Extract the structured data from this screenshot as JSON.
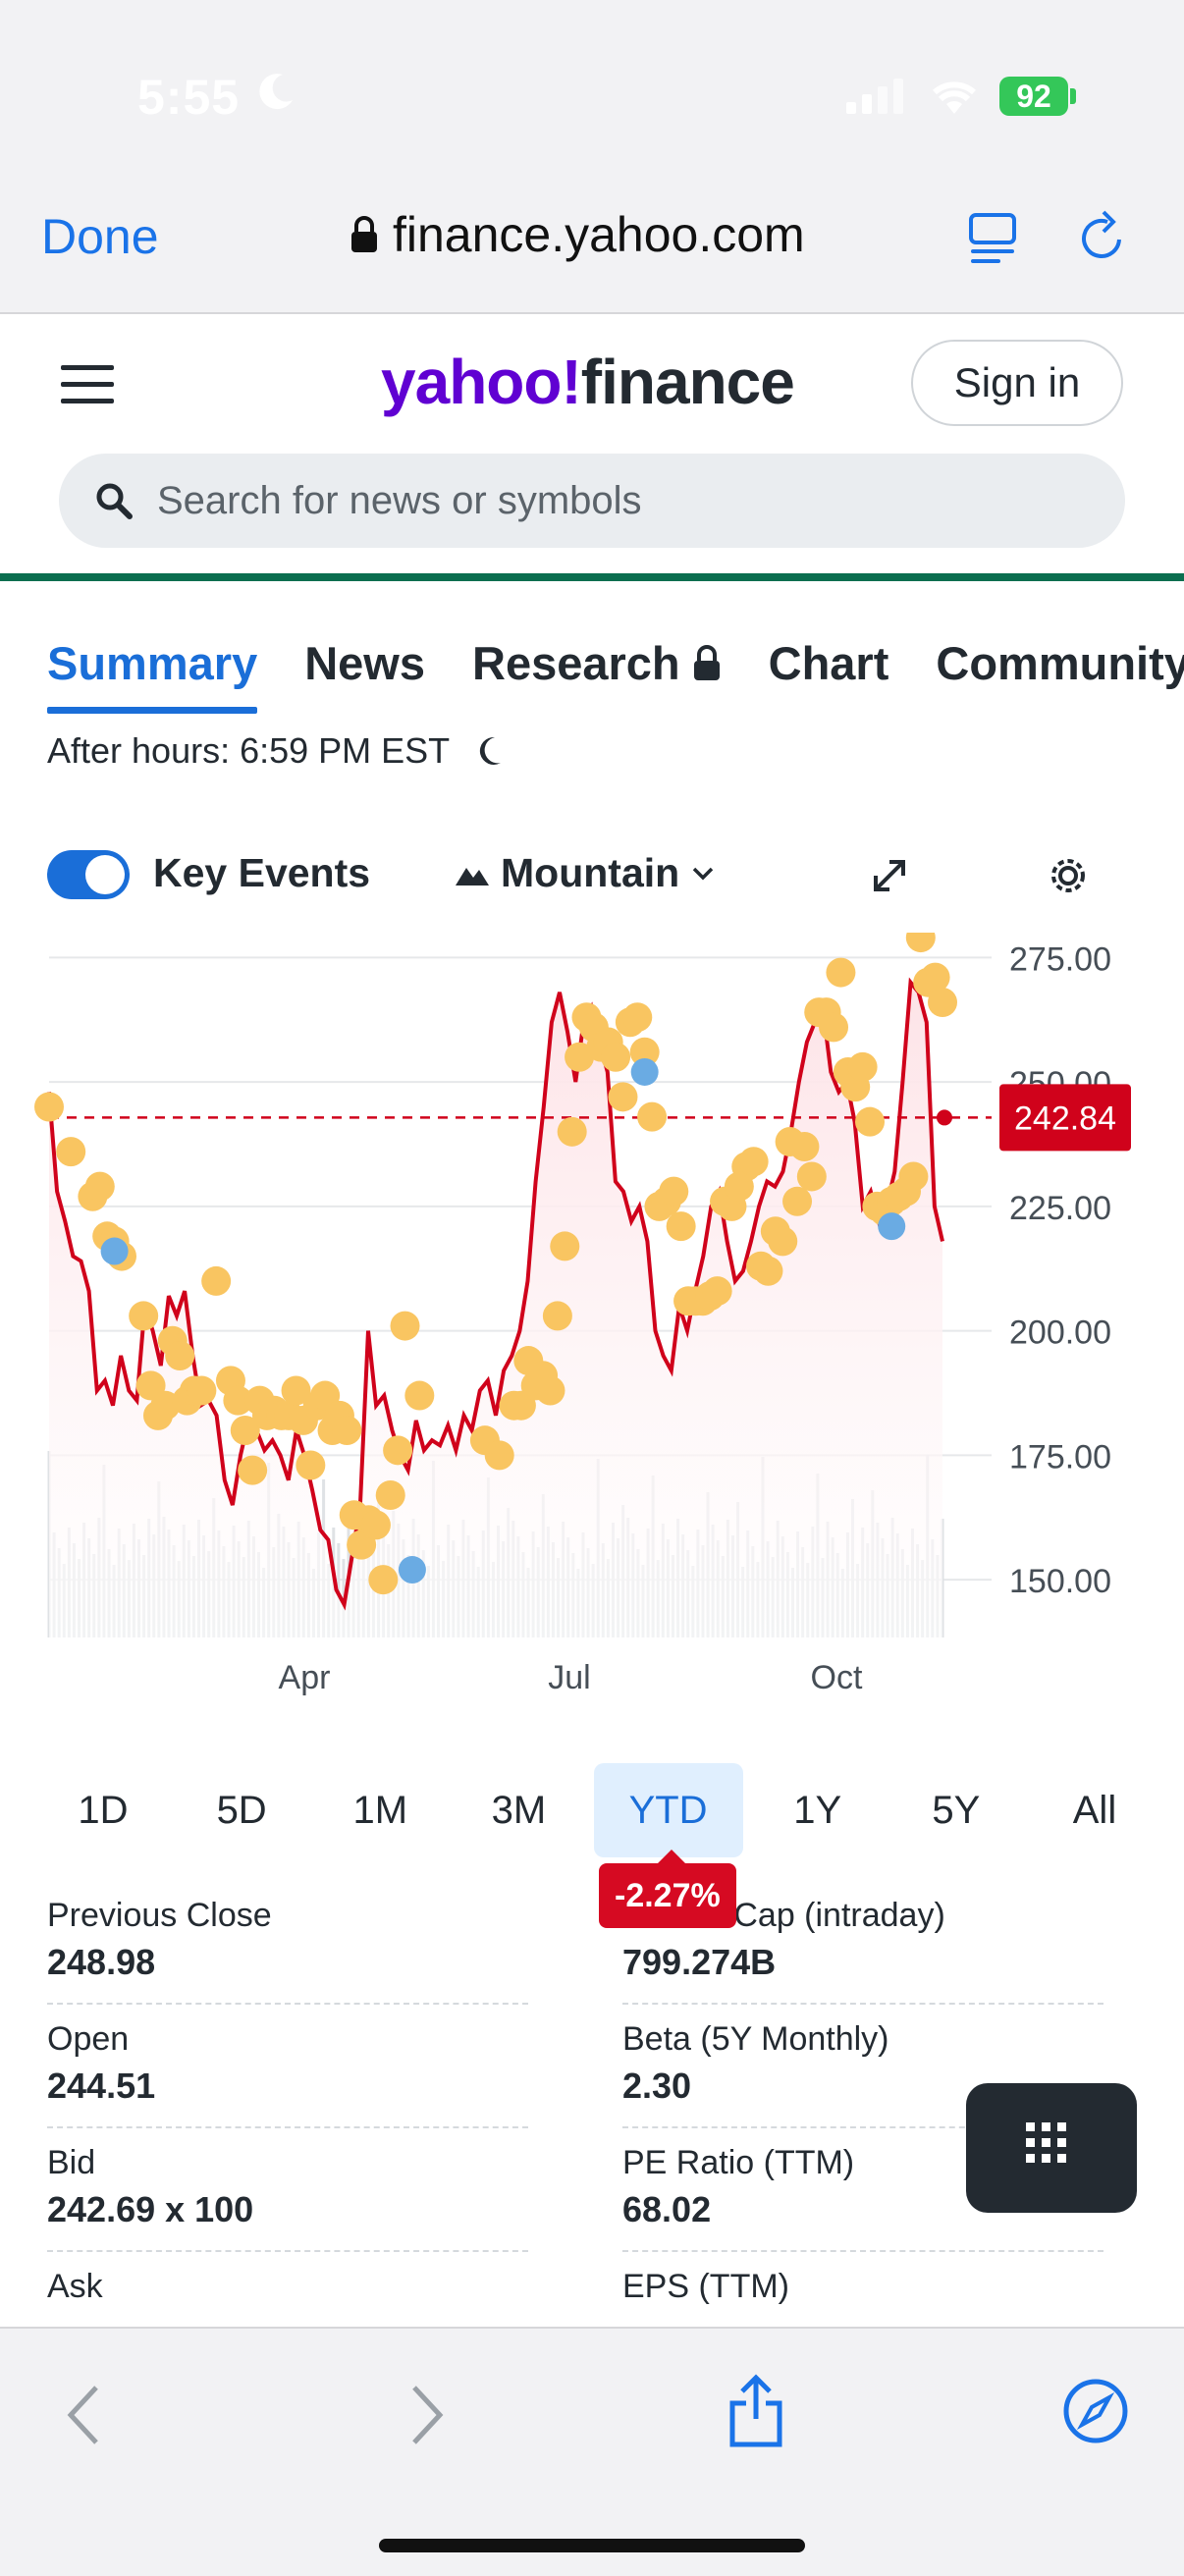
{
  "status_bar": {
    "time": "5:55",
    "battery": "92"
  },
  "browser": {
    "done_label": "Done",
    "url": "finance.yahoo.com"
  },
  "header": {
    "logo_y": "yahoo!",
    "logo_f": "finance",
    "signin_label": "Sign in",
    "search_placeholder": "Search for news or symbols"
  },
  "tabs": [
    {
      "label": "Summary",
      "active": true
    },
    {
      "label": "News"
    },
    {
      "label": "Research"
    },
    {
      "label": "Chart"
    },
    {
      "label": "Community"
    }
  ],
  "after_hours": "After hours: 6:59 PM EST",
  "chart_controls": {
    "key_events_label": "Key Events",
    "key_events_on": true,
    "chart_type": "Mountain"
  },
  "chart_data": {
    "type": "area",
    "x_ticks": [
      "Apr",
      "Jul",
      "Oct"
    ],
    "y_ticks": [
      275.0,
      250.0,
      225.0,
      200.0,
      175.0,
      150.0
    ],
    "ylim": [
      138,
      280
    ],
    "reference_value": 242.84,
    "reference_label": "242.84",
    "line_color": "#d0021b",
    "fill_color": "#fde3e7",
    "event_color": "#f9c561",
    "event_alt_color": "#6aabe3",
    "series": [
      {
        "values": [
          248,
          228,
          222,
          215,
          214,
          208,
          188,
          190,
          185,
          195,
          188,
          186,
          205,
          200,
          193,
          207,
          203,
          208,
          195,
          185,
          186,
          183,
          170,
          165,
          175,
          182,
          180,
          176,
          178,
          175,
          170,
          180,
          175,
          168,
          160,
          158,
          148,
          145,
          155,
          165,
          200,
          185,
          187,
          180,
          175,
          172,
          182,
          176,
          178,
          177,
          181,
          176,
          183,
          180,
          188,
          190,
          183,
          192,
          195,
          200,
          210,
          230,
          245,
          262,
          268,
          260,
          250,
          262,
          265,
          258,
          252,
          230,
          228,
          222,
          225,
          218,
          200,
          195,
          192,
          205,
          200,
          208,
          215,
          225,
          228,
          218,
          210,
          212,
          218,
          225,
          230,
          229,
          232,
          240,
          250,
          258,
          262,
          265,
          252,
          248,
          250,
          242,
          225,
          228,
          222,
          225,
          232,
          250,
          270,
          268,
          262,
          225,
          218
        ]
      }
    ],
    "key_events": [
      [
        0,
        245
      ],
      [
        6,
        236
      ],
      [
        12,
        227
      ],
      [
        14,
        229
      ],
      [
        16,
        219
      ],
      [
        18,
        218
      ],
      [
        20,
        215
      ],
      [
        26,
        203
      ],
      [
        28,
        189
      ],
      [
        30,
        183
      ],
      [
        32,
        185
      ],
      [
        34,
        198
      ],
      [
        36,
        195
      ],
      [
        38,
        186
      ],
      [
        40,
        188
      ],
      [
        42,
        188
      ],
      [
        46,
        210
      ],
      [
        50,
        190
      ],
      [
        52,
        186
      ],
      [
        54,
        180
      ],
      [
        56,
        172
      ],
      [
        58,
        186
      ],
      [
        60,
        183
      ],
      [
        62,
        184
      ],
      [
        64,
        183
      ],
      [
        66,
        183
      ],
      [
        68,
        188
      ],
      [
        70,
        182
      ],
      [
        72,
        173
      ],
      [
        74,
        185
      ],
      [
        76,
        187
      ],
      [
        78,
        180
      ],
      [
        80,
        183
      ],
      [
        82,
        180
      ],
      [
        84,
        163
      ],
      [
        86,
        157
      ],
      [
        88,
        162
      ],
      [
        90,
        161
      ],
      [
        92,
        150
      ],
      [
        94,
        167
      ],
      [
        96,
        176
      ],
      [
        98,
        201
      ],
      [
        102,
        187
      ],
      [
        120,
        178
      ],
      [
        124,
        175
      ],
      [
        128,
        185
      ],
      [
        130,
        185
      ],
      [
        132,
        194
      ],
      [
        134,
        189
      ],
      [
        136,
        191
      ],
      [
        138,
        188
      ],
      [
        140,
        203
      ],
      [
        142,
        217
      ],
      [
        144,
        240
      ],
      [
        146,
        255
      ],
      [
        148,
        263
      ],
      [
        150,
        261
      ],
      [
        152,
        257
      ],
      [
        154,
        258
      ],
      [
        156,
        255
      ],
      [
        158,
        247
      ],
      [
        160,
        262
      ],
      [
        162,
        263
      ],
      [
        164,
        256
      ],
      [
        166,
        243
      ],
      [
        168,
        225
      ],
      [
        170,
        226
      ],
      [
        172,
        228
      ],
      [
        174,
        221
      ],
      [
        176,
        206
      ],
      [
        178,
        206
      ],
      [
        180,
        206
      ],
      [
        182,
        207
      ],
      [
        184,
        208
      ],
      [
        186,
        226
      ],
      [
        188,
        225
      ],
      [
        190,
        229
      ],
      [
        192,
        233
      ],
      [
        194,
        234
      ],
      [
        196,
        213
      ],
      [
        198,
        212
      ],
      [
        200,
        220
      ],
      [
        202,
        218
      ],
      [
        204,
        238
      ],
      [
        206,
        226
      ],
      [
        208,
        237
      ],
      [
        210,
        231
      ],
      [
        212,
        264
      ],
      [
        214,
        264
      ],
      [
        216,
        261
      ],
      [
        218,
        272
      ],
      [
        220,
        252
      ],
      [
        222,
        249
      ],
      [
        224,
        253
      ],
      [
        226,
        242
      ],
      [
        228,
        225
      ],
      [
        230,
        224
      ],
      [
        232,
        226
      ],
      [
        234,
        227
      ],
      [
        236,
        228
      ],
      [
        238,
        231
      ],
      [
        240,
        279
      ],
      [
        242,
        270
      ],
      [
        244,
        271
      ],
      [
        246,
        266
      ]
    ],
    "key_events_alt": [
      [
        18,
        216
      ],
      [
        100,
        152
      ],
      [
        164,
        252
      ],
      [
        232,
        221
      ]
    ]
  },
  "ranges": [
    {
      "label": "1D"
    },
    {
      "label": "5D"
    },
    {
      "label": "1M"
    },
    {
      "label": "3M"
    },
    {
      "label": "YTD",
      "active": true
    },
    {
      "label": "1Y"
    },
    {
      "label": "5Y"
    },
    {
      "label": "All"
    }
  ],
  "range_change": "-2.27%",
  "stats": [
    {
      "label": "Previous Close",
      "value": "248.98"
    },
    {
      "label": "Market Cap (intraday)",
      "value": "799.274B"
    },
    {
      "label": "Open",
      "value": "244.51"
    },
    {
      "label": "Beta (5Y Monthly)",
      "value": "2.30"
    },
    {
      "label": "Bid",
      "value": "242.69 x 100"
    },
    {
      "label": "PE Ratio (TTM)",
      "value": "68.02"
    },
    {
      "label": "Ask",
      "value": ""
    },
    {
      "label": "EPS (TTM)",
      "value": ""
    }
  ]
}
